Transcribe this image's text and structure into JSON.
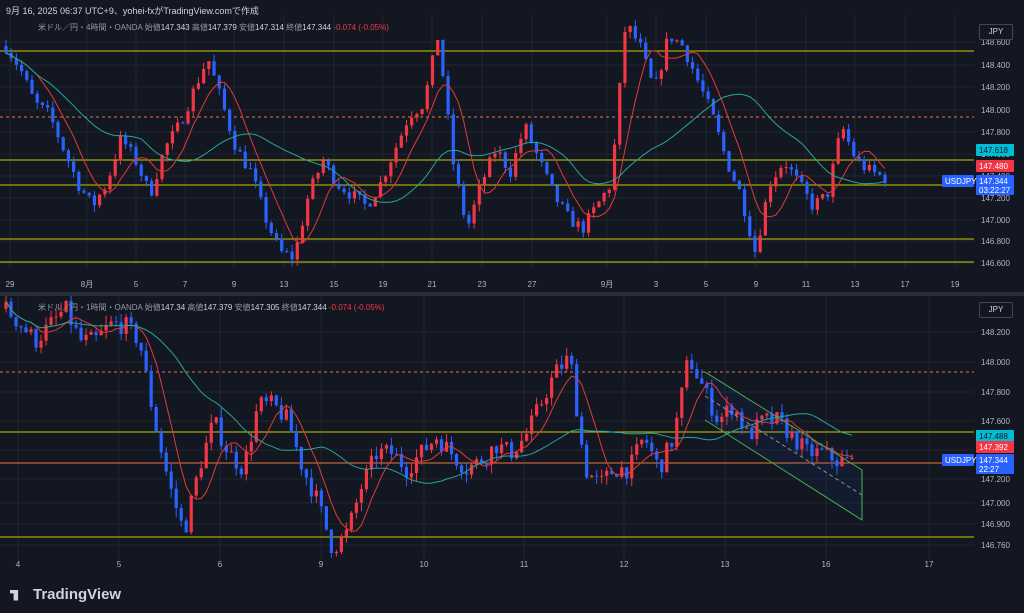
{
  "header": {
    "text": "9月 16, 2025 06:37 UTC+9、yohei-fxがTradingView.comで作成"
  },
  "brand": {
    "name": "TradingView"
  },
  "colors": {
    "up": "#f23645",
    "down": "#2962ff",
    "bg": "#131722",
    "grid": "#1f2430",
    "yellow": "#c8c800",
    "orange": "#e8743a",
    "teal": "#26a69a",
    "red_ma": "#e53935",
    "green": "#4caf50"
  },
  "panes": [
    {
      "legend": {
        "symbol": "米ドル／円・4時間・OANDA",
        "o_label": "始値",
        "o": "147.343",
        "h_label": "高値",
        "h": "147.379",
        "l_label": "安値",
        "l": "147.314",
        "c_label": "終値",
        "c": "147.344",
        "chg": "-0.074 (-0.05%)"
      },
      "currency": "JPY",
      "price_axis": [
        "148.600",
        "148.400",
        "148.200",
        "148.000",
        "147.800",
        "147.600",
        "147.400",
        "147.200",
        "147.000",
        "146.800",
        "146.600"
      ],
      "time_axis": [
        "29",
        "8月",
        "5",
        "7",
        "9",
        "13",
        "15",
        "19",
        "21",
        "23",
        "27",
        "9月",
        "3",
        "5",
        "9",
        "11",
        "13",
        "17",
        "19"
      ],
      "labels": {
        "cyan": "147.618",
        "red": "147.480",
        "price": "147.344",
        "symbol": "USDJPY",
        "countdown": "03:22:27"
      }
    },
    {
      "legend": {
        "symbol": "米ドル／円・1時間・OANDA",
        "o_label": "始値",
        "o": "147.34",
        "h_label": "高値",
        "h": "147.379",
        "l_label": "安値",
        "l": "147.305",
        "c_label": "終値",
        "c": "147.344",
        "chg": "-0.074 (-0.05%)"
      },
      "currency": "JPY",
      "price_axis": [
        "148.200",
        "148.000",
        "147.800",
        "147.600",
        "147.400",
        "147.200",
        "147.000",
        "146.900",
        "146.760"
      ],
      "time_axis": [
        "4",
        "5",
        "6",
        "9",
        "10",
        "11",
        "12",
        "13",
        "16",
        "17"
      ],
      "labels": {
        "cyan": "147.488",
        "red": "147.392",
        "price": "147.344",
        "symbol": "USDJPY",
        "countdown": "22:27"
      }
    }
  ],
  "chart_data": [
    {
      "type": "candlestick",
      "title": "米ドル／円・4時間・OANDA",
      "ylim": [
        146.56,
        148.78
      ],
      "horizontal_levels": {
        "yellow": [
          148.51,
          147.63,
          147.4,
          146.82,
          146.62
        ],
        "orange_dashed": [
          147.93
        ]
      },
      "close_path": [
        148.5,
        148.3,
        148.0,
        147.9,
        147.6,
        147.3,
        147.1,
        147.3,
        147.7,
        147.5,
        147.2,
        147.6,
        147.8,
        148.1,
        148.4,
        148.0,
        147.6,
        147.4,
        147.0,
        146.7,
        146.65,
        147.2,
        147.5,
        147.3,
        147.2,
        147.1,
        147.3,
        147.6,
        147.9,
        148.0,
        148.6,
        147.5,
        146.9,
        147.3,
        147.6,
        147.4,
        147.8,
        147.5,
        147.2,
        147.0,
        146.9,
        147.1,
        147.3,
        148.7,
        148.5,
        148.1,
        148.6,
        148.5,
        148.2,
        147.9,
        147.5,
        147.2,
        146.7,
        147.3,
        147.5,
        147.3,
        147.1,
        147.2,
        147.8,
        147.5,
        147.4,
        147.35
      ]
    },
    {
      "type": "candlestick",
      "title": "米ドル／円・1時間・OANDA",
      "ylim": [
        146.73,
        148.38
      ],
      "horizontal_levels": {
        "yellow": [
          147.5,
          147.34,
          146.82
        ],
        "orange_dashed": [
          147.93
        ]
      },
      "close_path": [
        148.3,
        148.2,
        148.1,
        148.2,
        148.3,
        148.1,
        148.1,
        148.2,
        148.2,
        148.1,
        147.6,
        147.2,
        146.9,
        147.3,
        147.6,
        147.4,
        147.3,
        147.7,
        147.7,
        147.6,
        147.3,
        147.1,
        146.8,
        146.9,
        147.2,
        147.4,
        147.4,
        147.3,
        147.4,
        147.5,
        147.4,
        147.3,
        147.35,
        147.45,
        147.4,
        147.5,
        147.7,
        147.9,
        148.0,
        147.3,
        147.2,
        147.3,
        147.3,
        147.5,
        147.3,
        147.5,
        148.0,
        147.8,
        147.6,
        147.7,
        147.5,
        147.6,
        147.6,
        147.5,
        147.4,
        147.4,
        147.35,
        147.34
      ]
    }
  ]
}
